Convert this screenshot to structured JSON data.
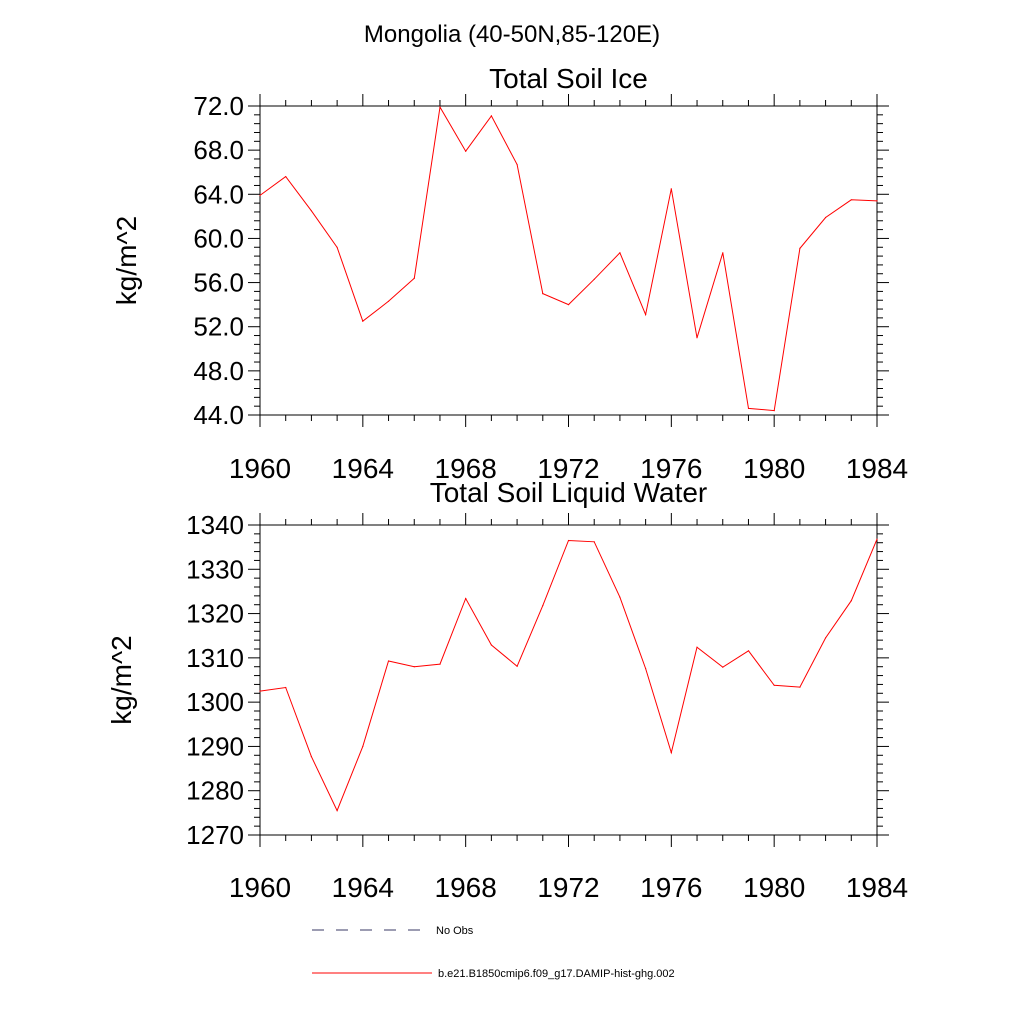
{
  "page_title": "Mongolia (40-50N,85-120E)",
  "legend": {
    "placement": "bottom",
    "items": [
      {
        "label": "No Obs",
        "style": "dashed",
        "color": "#3a3a66"
      },
      {
        "label": "b.e21.B1850cmip6.f09_g17.DAMIP-hist-ghg.002",
        "style": "solid",
        "color": "#ff0000"
      }
    ]
  },
  "chart_data": [
    {
      "type": "line",
      "title": "Total Soil Ice",
      "xlabel": "",
      "ylabel": "kg/m^2",
      "xlim": [
        1960,
        1984
      ],
      "ylim": [
        44,
        72
      ],
      "xticks": [
        1960,
        1964,
        1968,
        1972,
        1976,
        1980,
        1984
      ],
      "xtick_labels": [
        "1960",
        "1964",
        "1968",
        "1972",
        "1976",
        "1980",
        "1984"
      ],
      "yticks": [
        44,
        48,
        52,
        56,
        60,
        64,
        68,
        72
      ],
      "ytick_labels": [
        "44.0",
        "48.0",
        "52.0",
        "56.0",
        "60.0",
        "64.0",
        "68.0",
        "72.0"
      ],
      "grid": false,
      "series": [
        {
          "name": "b.e21.B1850cmip6.f09_g17.DAMIP-hist-ghg.002",
          "color": "#ff0000",
          "x": [
            1960,
            1961,
            1962,
            1963,
            1964,
            1965,
            1966,
            1967,
            1968,
            1969,
            1970,
            1971,
            1972,
            1973,
            1974,
            1975,
            1976,
            1977,
            1978,
            1979,
            1980,
            1981,
            1982,
            1983,
            1984
          ],
          "values": [
            63.9,
            65.6,
            62.5,
            59.2,
            52.5,
            54.3,
            56.4,
            71.9,
            67.9,
            71.1,
            66.7,
            55.0,
            54.0,
            56.3,
            58.7,
            53.1,
            64.5,
            51.0,
            58.7,
            44.6,
            44.4,
            59.1,
            61.9,
            63.5,
            63.4
          ]
        }
      ]
    },
    {
      "type": "line",
      "title": "Total Soil Liquid Water",
      "xlabel": "",
      "ylabel": "kg/m^2",
      "xlim": [
        1960,
        1984
      ],
      "ylim": [
        1270,
        1340
      ],
      "xticks": [
        1960,
        1964,
        1968,
        1972,
        1976,
        1980,
        1984
      ],
      "xtick_labels": [
        "1960",
        "1964",
        "1968",
        "1972",
        "1976",
        "1980",
        "1984"
      ],
      "yticks": [
        1270,
        1280,
        1290,
        1300,
        1310,
        1320,
        1330,
        1340
      ],
      "ytick_labels": [
        "1270",
        "1280",
        "1290",
        "1300",
        "1310",
        "1320",
        "1330",
        "1340"
      ],
      "grid": false,
      "series": [
        {
          "name": "b.e21.B1850cmip6.f09_g17.DAMIP-hist-ghg.002",
          "color": "#ff0000",
          "x": [
            1960,
            1961,
            1962,
            1963,
            1964,
            1965,
            1966,
            1967,
            1968,
            1969,
            1970,
            1971,
            1972,
            1973,
            1974,
            1975,
            1976,
            1977,
            1978,
            1979,
            1980,
            1981,
            1982,
            1983,
            1984
          ],
          "values": [
            1302.5,
            1303.3,
            1287.7,
            1275.5,
            1290.0,
            1309.3,
            1308.0,
            1308.6,
            1323.4,
            1312.9,
            1308.1,
            1321.8,
            1336.5,
            1336.2,
            1323.7,
            1307.6,
            1288.6,
            1312.4,
            1307.9,
            1311.6,
            1303.8,
            1303.4,
            1314.5,
            1322.9,
            1336.8
          ]
        }
      ]
    }
  ]
}
